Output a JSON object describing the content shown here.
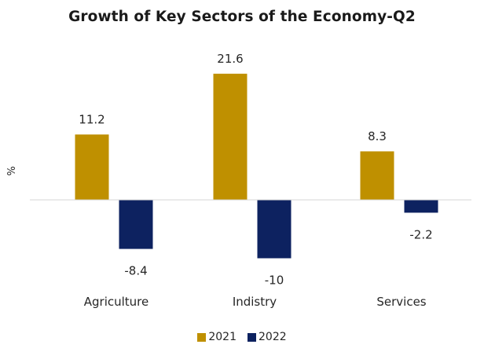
{
  "chart_data": {
    "type": "bar",
    "title": "Growth of Key Sectors of the Economy-Q2",
    "ylabel": "%",
    "categories": [
      "Agriculture",
      "Indistry",
      "Services"
    ],
    "series": [
      {
        "name": "2021",
        "color": "#BF9000",
        "values": [
          11.2,
          21.6,
          8.3
        ]
      },
      {
        "name": "2022",
        "color": "#0D2260",
        "values": [
          -8.4,
          -10,
          -2.2
        ]
      }
    ],
    "ylim": [
      -10.5,
      23.5
    ],
    "grid": false,
    "legend_position": "bottom",
    "data_labels": true
  }
}
